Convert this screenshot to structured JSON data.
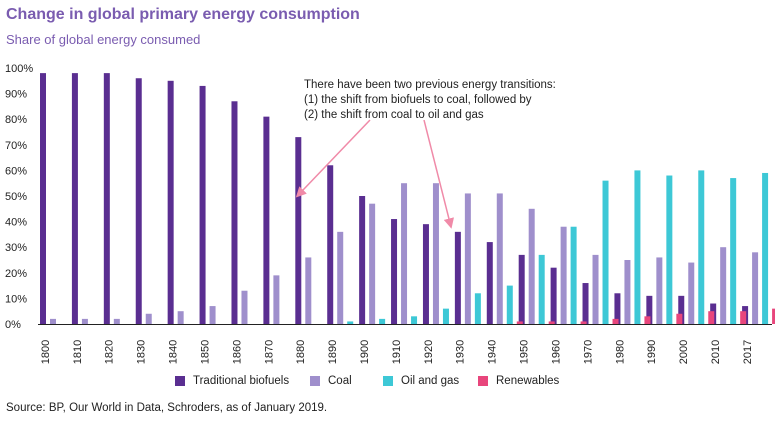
{
  "header": {
    "title": "Change in global primary energy consumption",
    "subtitle": "Share of global energy consumed"
  },
  "annotation": {
    "lines": [
      "There have been two previous energy transitions:",
      "(1) the shift from biofuels to coal, followed by",
      "(2) the shift from coal to oil and gas"
    ]
  },
  "footer": {
    "source": "Source: BP, Our World in Data, Schroders, as of January 2019."
  },
  "chart_data": {
    "type": "bar",
    "categories": [
      "1800",
      "1810",
      "1820",
      "1830",
      "1840",
      "1850",
      "1860",
      "1870",
      "1880",
      "1890",
      "1900",
      "1910",
      "1920",
      "1930",
      "1940",
      "1950",
      "1960",
      "1970",
      "1980",
      "1990",
      "2000",
      "2010",
      "2017"
    ],
    "ylim": [
      0,
      100
    ],
    "yticks": [
      "0%",
      "10%",
      "20%",
      "30%",
      "40%",
      "50%",
      "60%",
      "70%",
      "80%",
      "90%",
      "100%"
    ],
    "grid": false,
    "legend_position": "bottom",
    "series": [
      {
        "name": "Traditional biofuels",
        "color": "#5a2e91",
        "values": [
          98,
          98,
          98,
          96,
          95,
          93,
          87,
          81,
          73,
          62,
          50,
          41,
          39,
          36,
          32,
          27,
          22,
          16,
          12,
          11,
          11,
          8,
          7
        ]
      },
      {
        "name": "Coal",
        "color": "#9f8fcc",
        "values": [
          2,
          2,
          2,
          4,
          5,
          7,
          13,
          19,
          26,
          36,
          47,
          55,
          55,
          51,
          51,
          45,
          38,
          27,
          25,
          26,
          24,
          30,
          28
        ]
      },
      {
        "name": "Oil and gas",
        "color": "#3dc8d6",
        "values": [
          0,
          0,
          0,
          0,
          0,
          0,
          0,
          0,
          0,
          1,
          2,
          3,
          6,
          12,
          15,
          27,
          38,
          56,
          60,
          58,
          60,
          57,
          59
        ]
      },
      {
        "name": "Renewables",
        "color": "#e8467c",
        "values": [
          0,
          0,
          0,
          0,
          0,
          0,
          0,
          0,
          0,
          0,
          0,
          0,
          0,
          0,
          1,
          1,
          1,
          2,
          3,
          4,
          5,
          5,
          6
        ]
      }
    ]
  }
}
